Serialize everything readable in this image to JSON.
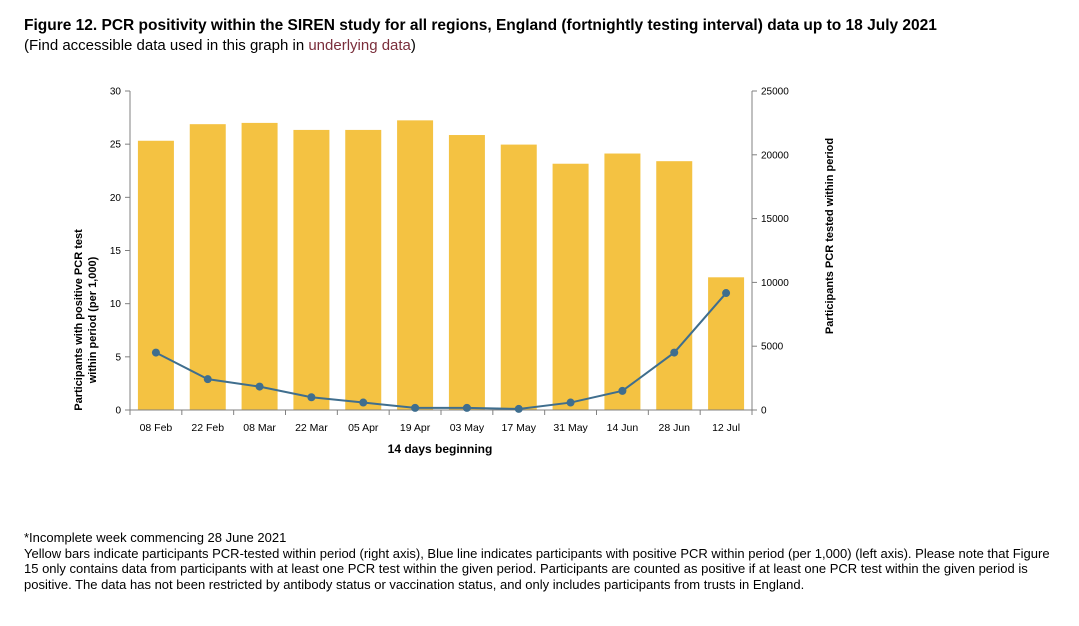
{
  "header": {
    "title": "Figure 12. PCR positivity within the SIREN study for all regions, England (fortnightly testing interval) data up to 18 July 2021",
    "subtitle_prefix": "(Find accessible data used in this graph in ",
    "subtitle_link": "underlying data",
    "subtitle_suffix": ")"
  },
  "chart_data": {
    "type": "bar+line",
    "categories": [
      "08 Feb",
      "22 Feb",
      "08 Mar",
      "22 Mar",
      "05 Apr",
      "19 Apr",
      "03 May",
      "17 May",
      "31 May",
      "14 Jun",
      "28 Jun",
      "12 Jul"
    ],
    "series": [
      {
        "name": "Participants PCR-tested within period",
        "type": "bar",
        "axis": "right",
        "color": "#f4c242",
        "values": [
          21100,
          22400,
          22500,
          21950,
          21950,
          22700,
          21550,
          20800,
          19300,
          20100,
          19500,
          10400
        ]
      },
      {
        "name": "Participants with positive PCR test within period (per 1,000)",
        "type": "line",
        "axis": "left",
        "color": "#3f6e8e",
        "values": [
          5.4,
          2.9,
          2.2,
          1.2,
          0.7,
          0.2,
          0.2,
          0.1,
          0.7,
          1.8,
          5.4,
          11.0
        ]
      }
    ],
    "left_axis": {
      "label_line1": "Participants with positive PCR test",
      "label_line2": "within period (per 1,000)",
      "ylim": [
        0,
        30
      ],
      "ticks": [
        0,
        5,
        10,
        15,
        20,
        25,
        30
      ]
    },
    "right_axis": {
      "label": "Participants PCR tested within period",
      "ylim": [
        0,
        25000
      ],
      "ticks": [
        0,
        5000,
        10000,
        15000,
        20000,
        25000
      ]
    },
    "xlabel": "14 days beginning"
  },
  "notes": {
    "line1": "*Incomplete week commencing 28 June 2021",
    "line2": "Yellow bars indicate participants PCR-tested within period (right axis), Blue line indicates participants with positive PCR within period (per 1,000) (left axis). Please note that Figure 15 only contains data from participants with at least one PCR test within the given period. Participants are counted as positive if at least one PCR test within the given period is positive. The data has not been restricted by antibody status or vaccination status, and only includes participants from trusts in England."
  }
}
